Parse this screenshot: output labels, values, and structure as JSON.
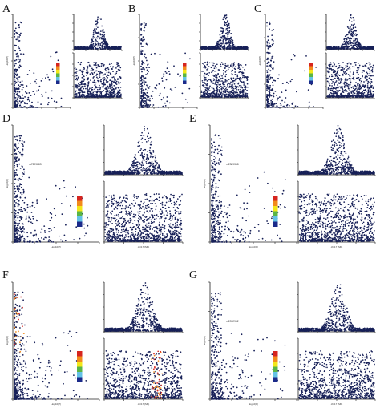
{
  "figure": {
    "panels": [
      {
        "letter": "A"
      },
      {
        "letter": "B"
      },
      {
        "letter": "C"
      },
      {
        "letter": "D"
      },
      {
        "letter": "E"
      },
      {
        "letter": "F"
      },
      {
        "letter": "G"
      }
    ]
  },
  "legend_colors": [
    "#d6251f",
    "#f28b1c",
    "#f3e71a",
    "#5ab547",
    "#64c2e6",
    "#1b2a8a"
  ],
  "point_color": "#172058",
  "chart_data": [
    {
      "panel": "A",
      "type": "scatter",
      "plots": [
        "scatter",
        "manhattan",
        "manhattan"
      ],
      "ylabel": "-log10(P)"
    },
    {
      "panel": "B",
      "type": "scatter",
      "plots": [
        "scatter",
        "manhattan",
        "manhattan"
      ],
      "ylabel": "-log10(P)"
    },
    {
      "panel": "C",
      "type": "scatter",
      "plots": [
        "scatter",
        "manhattan",
        "manhattan"
      ],
      "ylabel": "-log10(P)"
    },
    {
      "panel": "D",
      "type": "scatter",
      "plots": [
        "scatter",
        "manhattan",
        "manhattan"
      ],
      "xlabel": "-log10(P)",
      "ylabel": "-log10(P)",
      "region_xlabel": "chr17 (Mb)",
      "labels": [
        "rs7209883"
      ]
    },
    {
      "panel": "E",
      "type": "scatter",
      "plots": [
        "scatter",
        "manhattan",
        "manhattan"
      ],
      "xlabel": "-log10(P)",
      "ylabel": "-log10(P)",
      "region_xlabel": "chr17 (Mb)",
      "labels": [
        "rs2389368"
      ]
    },
    {
      "panel": "F",
      "type": "scatter",
      "plots": [
        "scatter",
        "manhattan",
        "manhattan"
      ],
      "xlabel": "-log10(P)",
      "ylabel": "-log10(P)",
      "region_xlabel": "chr17 (Mb)"
    },
    {
      "panel": "G",
      "type": "scatter",
      "plots": [
        "scatter",
        "manhattan",
        "manhattan"
      ],
      "xlabel": "-log10(P)",
      "ylabel": "-log10(P)",
      "region_xlabel": "chr17 (Mb)",
      "labels": [
        "rs2032962"
      ]
    }
  ]
}
